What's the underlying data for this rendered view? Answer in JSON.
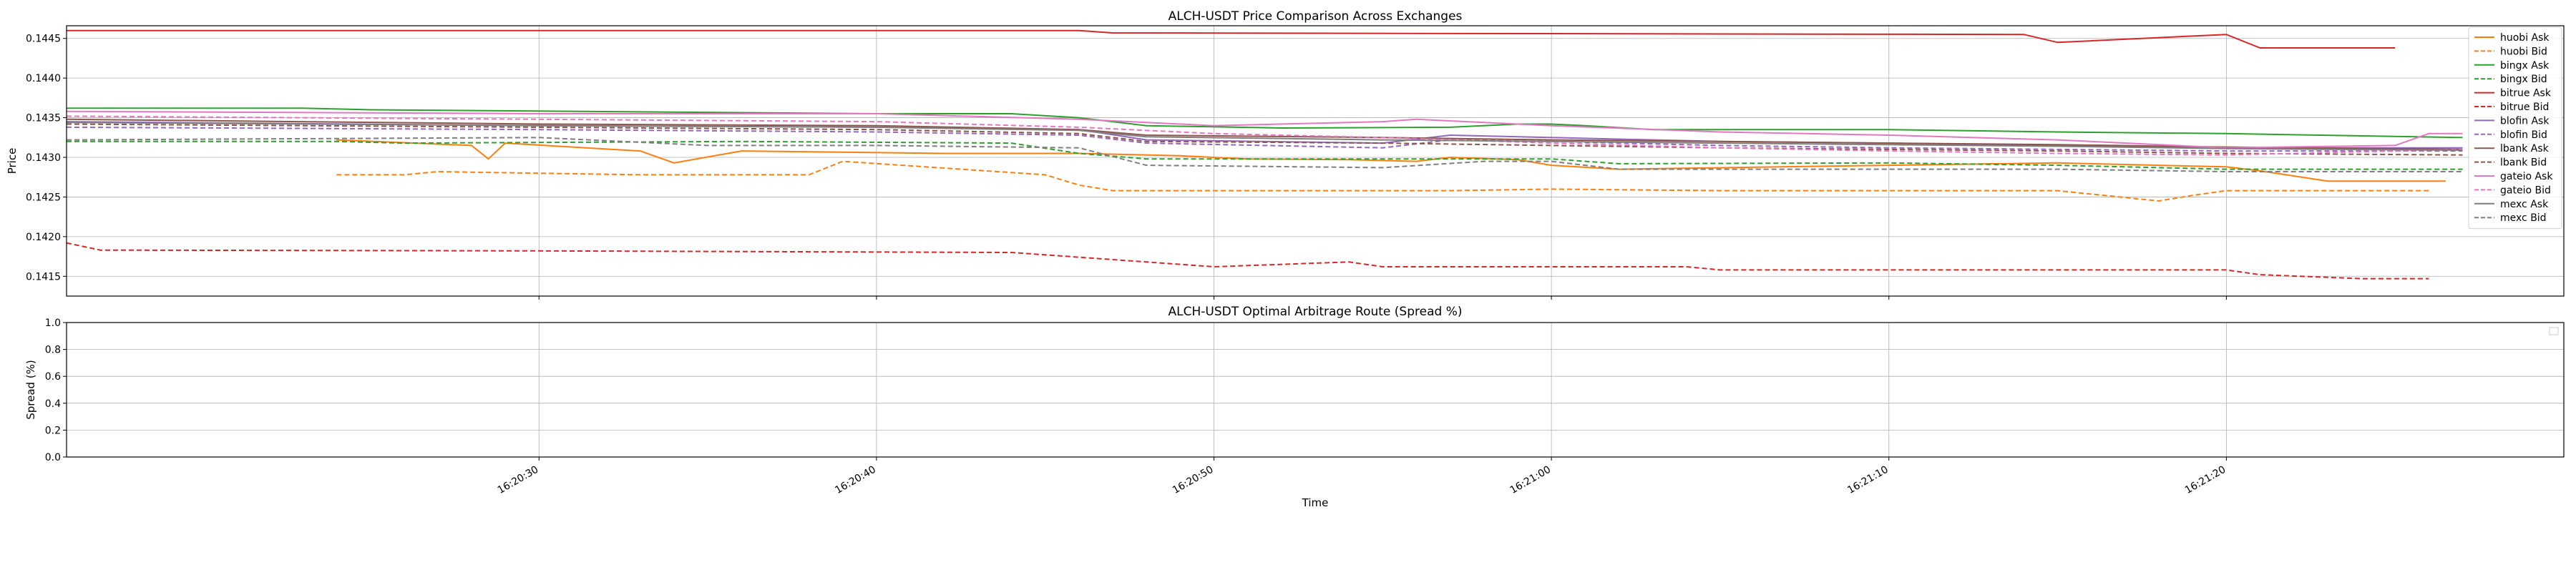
{
  "chart_data": [
    {
      "type": "line",
      "title": "ALCH-USDT Price Comparison Across Exchanges",
      "xlabel": "",
      "ylabel": "Price",
      "ylim": [
        0.14125,
        0.14466
      ],
      "xlim": [
        "16:20:16",
        "16:21:30"
      ],
      "yticks": [
        "0.1415",
        "0.1420",
        "0.1425",
        "0.1430",
        "0.1435",
        "0.1440",
        "0.1445"
      ],
      "grid": true,
      "legend_position": "right",
      "series": [
        {
          "name": "huobi Ask",
          "color": "#ff7f0e",
          "dash": "solid",
          "x": [
            "16:20:24",
            "16:20:28",
            "16:20:28.5",
            "16:20:29",
            "16:20:33",
            "16:20:34",
            "16:20:36",
            "16:20:42",
            "16:20:46",
            "16:20:49",
            "16:20:51",
            "16:20:54",
            "16:20:56",
            "16:20:57",
            "16:20:59",
            "16:21:00",
            "16:21:02",
            "16:21:10",
            "16:21:15",
            "16:21:20",
            "16:21:21",
            "16:21:23",
            "16:21:25",
            "16:21:26.5"
          ],
          "y": [
            0.14322,
            0.14315,
            0.14298,
            0.14318,
            0.14308,
            0.14293,
            0.14308,
            0.14305,
            0.14305,
            0.14302,
            0.14298,
            0.14297,
            0.14295,
            0.143,
            0.14297,
            0.1429,
            0.14285,
            0.1429,
            0.14293,
            0.14288,
            0.14283,
            0.1427,
            0.1427,
            0.1427
          ]
        },
        {
          "name": "huobi Bid",
          "color": "#ff7f0e",
          "dash": "dashed",
          "x": [
            "16:20:24",
            "16:20:26",
            "16:20:27",
            "16:20:33",
            "16:20:38",
            "16:20:39",
            "16:20:45",
            "16:20:46",
            "16:20:47",
            "16:20:55",
            "16:20:57",
            "16:21:00",
            "16:21:05",
            "16:21:10",
            "16:21:15",
            "16:21:18",
            "16:21:19",
            "16:21:20",
            "16:21:22",
            "16:21:26"
          ],
          "y": [
            0.14278,
            0.14278,
            0.14282,
            0.14278,
            0.14278,
            0.14295,
            0.14278,
            0.14265,
            0.14258,
            0.14258,
            0.14258,
            0.1426,
            0.14258,
            0.14258,
            0.14258,
            0.14245,
            0.14252,
            0.14258,
            0.14258,
            0.14258
          ]
        },
        {
          "name": "bingx Ask",
          "color": "#2ca02c",
          "dash": "solid",
          "x": [
            "16:20:16",
            "16:20:23",
            "16:20:25",
            "16:20:40",
            "16:20:44",
            "16:20:46",
            "16:20:48",
            "16:20:52",
            "16:20:57",
            "16:20:59",
            "16:21:00",
            "16:21:01",
            "16:21:03",
            "16:21:10",
            "16:21:15",
            "16:21:20",
            "16:21:27"
          ],
          "y": [
            0.14362,
            0.14362,
            0.1436,
            0.14355,
            0.14355,
            0.1435,
            0.1434,
            0.14337,
            0.14338,
            0.14342,
            0.14342,
            0.1434,
            0.14335,
            0.14335,
            0.14332,
            0.1433,
            0.14325
          ]
        },
        {
          "name": "bingx Bid",
          "color": "#2ca02c",
          "dash": "dashed",
          "x": [
            "16:20:16",
            "16:20:24",
            "16:20:26",
            "16:20:36",
            "16:20:44",
            "16:20:46",
            "16:20:48",
            "16:20:58",
            "16:21:00",
            "16:21:02",
            "16:21:10",
            "16:21:15",
            "16:21:20",
            "16:21:27"
          ],
          "y": [
            0.1432,
            0.1432,
            0.14318,
            0.1432,
            0.14318,
            0.14305,
            0.14298,
            0.14298,
            0.14298,
            0.14292,
            0.14293,
            0.1429,
            0.14285,
            0.14285
          ]
        },
        {
          "name": "bitrue Ask",
          "color": "#d62728",
          "dash": "solid",
          "x": [
            "16:20:16",
            "16:20:46",
            "16:20:47",
            "16:21:14",
            "16:21:15",
            "16:21:20",
            "16:21:21",
            "16:21:25"
          ],
          "y": [
            0.1446,
            0.1446,
            0.14457,
            0.14455,
            0.14445,
            0.14455,
            0.14438,
            0.14438
          ]
        },
        {
          "name": "bitrue Bid",
          "color": "#d62728",
          "dash": "dashed",
          "x": [
            "16:20:16",
            "16:20:17",
            "16:20:30",
            "16:20:44",
            "16:20:48",
            "16:20:50",
            "16:20:54",
            "16:20:55",
            "16:21:00",
            "16:21:04",
            "16:21:05",
            "16:21:20",
            "16:21:21",
            "16:21:24",
            "16:21:26"
          ],
          "y": [
            0.14192,
            0.14183,
            0.14182,
            0.1418,
            0.14168,
            0.14162,
            0.14168,
            0.14162,
            0.14162,
            0.14162,
            0.14158,
            0.14158,
            0.14152,
            0.14147,
            0.14147
          ]
        },
        {
          "name": "blofin Ask",
          "color": "#9467bd",
          "dash": "solid",
          "x": [
            "16:20:16",
            "16:20:30",
            "16:20:40",
            "16:20:46",
            "16:20:48",
            "16:20:55",
            "16:20:57",
            "16:21:00",
            "16:21:05",
            "16:21:10",
            "16:21:15",
            "16:21:20",
            "16:21:27"
          ],
          "y": [
            0.14345,
            0.1434,
            0.14338,
            0.14335,
            0.14322,
            0.14318,
            0.14328,
            0.14325,
            0.1432,
            0.14318,
            0.14315,
            0.14312,
            0.14312
          ]
        },
        {
          "name": "blofin Bid",
          "color": "#9467bd",
          "dash": "dashed",
          "x": [
            "16:20:16",
            "16:20:30",
            "16:20:40",
            "16:20:46",
            "16:20:48",
            "16:20:55",
            "16:20:57",
            "16:21:00",
            "16:21:05",
            "16:21:10",
            "16:21:15",
            "16:21:20",
            "16:21:27"
          ],
          "y": [
            0.14338,
            0.14335,
            0.14332,
            0.14328,
            0.14318,
            0.14312,
            0.14322,
            0.1432,
            0.14315,
            0.14312,
            0.1431,
            0.14308,
            0.14308
          ]
        },
        {
          "name": "lbank Ask",
          "color": "#8c564b",
          "dash": "solid",
          "x": [
            "16:20:16",
            "16:20:30",
            "16:20:40",
            "16:20:46",
            "16:20:48",
            "16:20:55",
            "16:21:00",
            "16:21:05",
            "16:21:10",
            "16:21:15",
            "16:21:20",
            "16:21:27"
          ],
          "y": [
            0.14348,
            0.14342,
            0.1434,
            0.14335,
            0.14328,
            0.14325,
            0.14322,
            0.1432,
            0.14318,
            0.14316,
            0.14313,
            0.1431
          ]
        },
        {
          "name": "lbank Bid",
          "color": "#8c564b",
          "dash": "dashed",
          "x": [
            "16:20:16",
            "16:20:30",
            "16:20:40",
            "16:20:46",
            "16:20:48",
            "16:20:55",
            "16:21:00",
            "16:21:05",
            "16:21:10",
            "16:21:15",
            "16:21:20",
            "16:21:27"
          ],
          "y": [
            0.14342,
            0.14338,
            0.14335,
            0.1433,
            0.1432,
            0.14318,
            0.14315,
            0.14312,
            0.1431,
            0.14308,
            0.14305,
            0.14303
          ]
        },
        {
          "name": "gateio Ask",
          "color": "#e377c2",
          "dash": "solid",
          "x": [
            "16:20:16",
            "16:20:30",
            "16:20:40",
            "16:20:46",
            "16:20:50",
            "16:20:55",
            "16:20:56",
            "16:21:00",
            "16:21:05",
            "16:21:10",
            "16:21:15",
            "16:21:20",
            "16:21:25",
            "16:21:26",
            "16:21:27"
          ],
          "y": [
            0.14358,
            0.14355,
            0.14355,
            0.14348,
            0.1434,
            0.14345,
            0.14348,
            0.1434,
            0.14332,
            0.14328,
            0.14322,
            0.14312,
            0.14315,
            0.1433,
            0.1433
          ]
        },
        {
          "name": "gateio Bid",
          "color": "#e377c2",
          "dash": "dashed",
          "x": [
            "16:20:16",
            "16:20:30",
            "16:20:40",
            "16:20:46",
            "16:20:50",
            "16:20:55",
            "16:21:00",
            "16:21:05",
            "16:21:10",
            "16:21:15",
            "16:21:20",
            "16:21:27"
          ],
          "y": [
            0.14352,
            0.14348,
            0.14345,
            0.14338,
            0.1433,
            0.14325,
            0.14318,
            0.14312,
            0.14308,
            0.14305,
            0.14303,
            0.1431
          ]
        },
        {
          "name": "mexc Ask",
          "color": "#7f7f7f",
          "dash": "solid",
          "x": [
            "16:20:16",
            "16:20:30",
            "16:20:40",
            "16:20:46",
            "16:20:48",
            "16:20:55",
            "16:21:00",
            "16:21:05",
            "16:21:10",
            "16:21:15",
            "16:21:20",
            "16:21:27"
          ],
          "y": [
            0.14344,
            0.1434,
            0.14338,
            0.14334,
            0.14326,
            0.14322,
            0.1432,
            0.14318,
            0.14316,
            0.14314,
            0.14311,
            0.14309
          ]
        },
        {
          "name": "mexc Bid",
          "color": "#7f7f7f",
          "dash": "dashed",
          "x": [
            "16:20:16",
            "16:20:30",
            "16:20:35",
            "16:20:40",
            "16:20:46",
            "16:20:48",
            "16:20:55",
            "16:20:58",
            "16:21:00",
            "16:21:02",
            "16:21:10",
            "16:21:15",
            "16:21:20",
            "16:21:27"
          ],
          "y": [
            0.14322,
            0.14325,
            0.14315,
            0.14315,
            0.14312,
            0.1429,
            0.14287,
            0.14295,
            0.14295,
            0.14285,
            0.14285,
            0.14285,
            0.14282,
            0.14282
          ]
        }
      ]
    },
    {
      "type": "line",
      "title": "ALCH-USDT Optimal Arbitrage Route (Spread %)",
      "xlabel": "Time",
      "ylabel": "Spread (%)",
      "ylim": [
        0.0,
        1.0
      ],
      "yticks": [
        "0.0",
        "0.2",
        "0.4",
        "0.6",
        "0.8",
        "1.0"
      ],
      "xticks": [
        "16:20:30",
        "16:20:40",
        "16:20:50",
        "16:21:00",
        "16:21:10",
        "16:21:20"
      ],
      "grid": true,
      "series": []
    }
  ]
}
